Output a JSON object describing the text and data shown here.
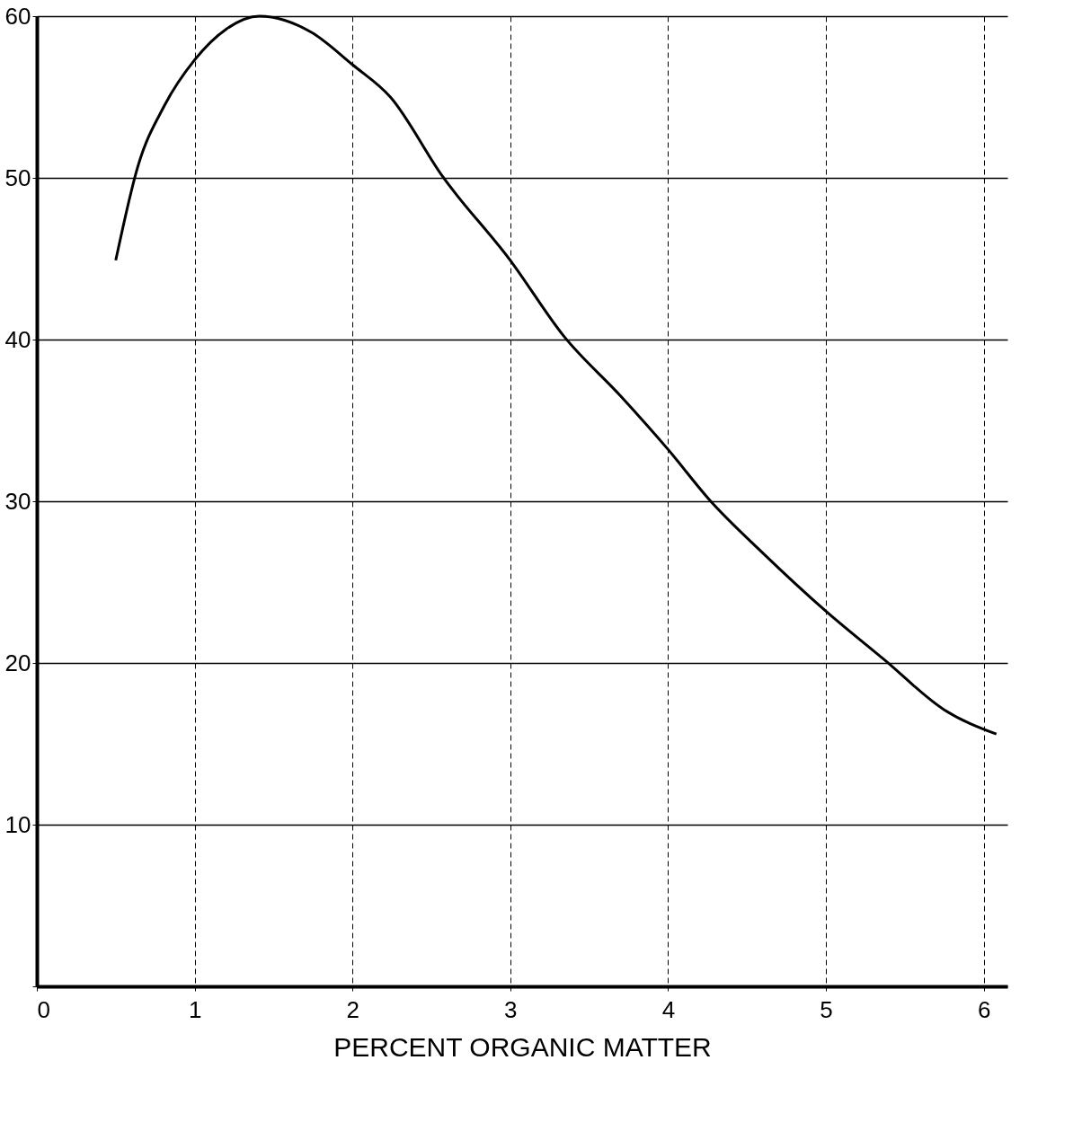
{
  "chart_data": {
    "type": "line",
    "xlabel": "PERCENT ORGANIC MATTER",
    "x": [
      0.5,
      0.64,
      0.81,
      1.0,
      1.2,
      1.41,
      1.74,
      2.0,
      2.24,
      2.57,
      3.0,
      3.34,
      3.7,
      4.0,
      4.27,
      4.6,
      5.0,
      5.37,
      5.75,
      6.08
    ],
    "series": [
      {
        "color": "#000000",
        "values": [
          44.9,
          50.7,
          54.5,
          57.3,
          59.2,
          60,
          59,
          57,
          55,
          50.1,
          44.9,
          40.2,
          36.5,
          33.2,
          30,
          26.8,
          23.2,
          20.2,
          17.1,
          15.6
        ]
      }
    ],
    "xlim": [
      0,
      6.15
    ],
    "ylim": [
      0,
      60
    ],
    "xticks": [
      0,
      1,
      2,
      3,
      4,
      5,
      6
    ],
    "yticks": [
      {
        "value": 0,
        "label": null
      },
      10,
      20,
      30,
      40,
      50,
      60
    ],
    "grid": true,
    "marker": "none",
    "line_style": "solid"
  }
}
